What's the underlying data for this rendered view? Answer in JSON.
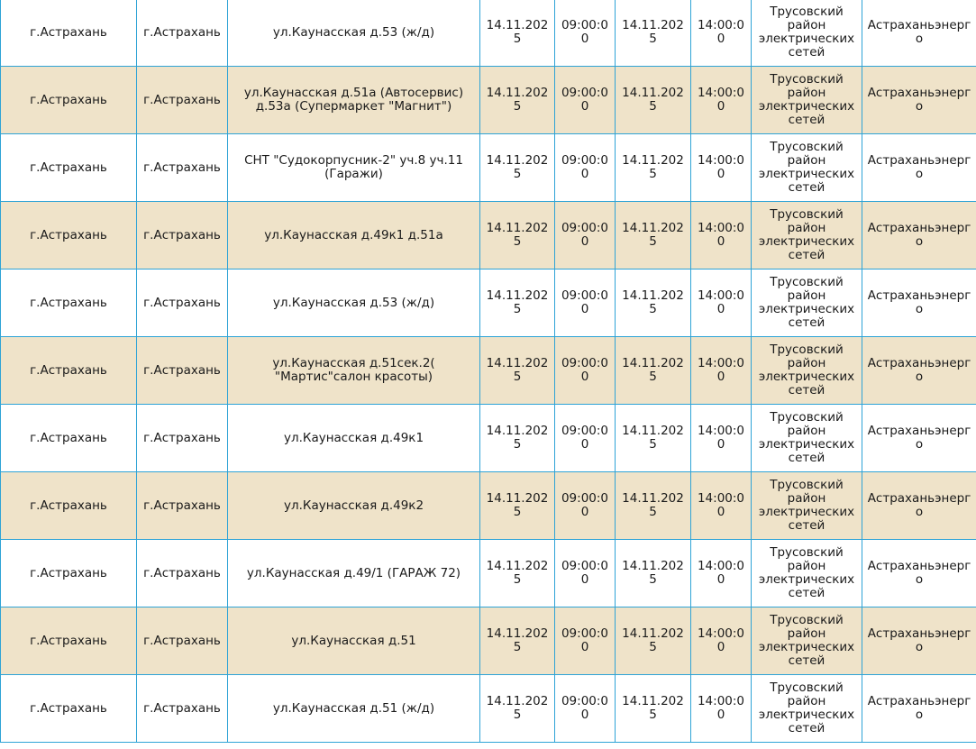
{
  "rows": [
    {
      "region": "г.Астрахань",
      "city": "г.Астрахань",
      "address": "ул.Каунасская д.53 (ж/д)",
      "start_date": "14.11.2025",
      "start_time": "09:00:00",
      "end_date": "14.11.2025",
      "end_time": "14:00:00",
      "district": "Трусовский район электрических сетей",
      "org": "Астраханьэнерго"
    },
    {
      "region": "г.Астрахань",
      "city": "г.Астрахань",
      "address": "ул.Каунасская д.51а (Автосервис) д.53а (Супермаркет \"Магнит\")",
      "start_date": "14.11.2025",
      "start_time": "09:00:00",
      "end_date": "14.11.2025",
      "end_time": "14:00:00",
      "district": "Трусовский район электрических сетей",
      "org": "Астраханьэнерго"
    },
    {
      "region": "г.Астрахань",
      "city": "г.Астрахань",
      "address": "СНТ \"Судокорпусник-2\" уч.8 уч.11 (Гаражи)",
      "start_date": "14.11.2025",
      "start_time": "09:00:00",
      "end_date": "14.11.2025",
      "end_time": "14:00:00",
      "district": "Трусовский район электрических сетей",
      "org": "Астраханьэнерго"
    },
    {
      "region": "г.Астрахань",
      "city": "г.Астрахань",
      "address": "ул.Каунасская д.49к1 д.51а",
      "start_date": "14.11.2025",
      "start_time": "09:00:00",
      "end_date": "14.11.2025",
      "end_time": "14:00:00",
      "district": "Трусовский район электрических сетей",
      "org": "Астраханьэнерго"
    },
    {
      "region": "г.Астрахань",
      "city": "г.Астрахань",
      "address": "ул.Каунасская д.53 (ж/д)",
      "start_date": "14.11.2025",
      "start_time": "09:00:00",
      "end_date": "14.11.2025",
      "end_time": "14:00:00",
      "district": "Трусовский район электрических сетей",
      "org": "Астраханьэнерго"
    },
    {
      "region": "г.Астрахань",
      "city": "г.Астрахань",
      "address": "ул.Каунасская д.51сек.2( \"Мартис\"салон красоты)",
      "start_date": "14.11.2025",
      "start_time": "09:00:00",
      "end_date": "14.11.2025",
      "end_time": "14:00:00",
      "district": "Трусовский район электрических сетей",
      "org": "Астраханьэнерго"
    },
    {
      "region": "г.Астрахань",
      "city": "г.Астрахань",
      "address": "ул.Каунасская д.49к1",
      "start_date": "14.11.2025",
      "start_time": "09:00:00",
      "end_date": "14.11.2025",
      "end_time": "14:00:00",
      "district": "Трусовский район электрических сетей",
      "org": "Астраханьэнерго"
    },
    {
      "region": "г.Астрахань",
      "city": "г.Астрахань",
      "address": "ул.Каунасская д.49к2",
      "start_date": "14.11.2025",
      "start_time": "09:00:00",
      "end_date": "14.11.2025",
      "end_time": "14:00:00",
      "district": "Трусовский район электрических сетей",
      "org": "Астраханьэнерго"
    },
    {
      "region": "г.Астрахань",
      "city": "г.Астрахань",
      "address": "ул.Каунасская д.49/1 (ГАРАЖ 72)",
      "start_date": "14.11.2025",
      "start_time": "09:00:00",
      "end_date": "14.11.2025",
      "end_time": "14:00:00",
      "district": "Трусовский район электрических сетей",
      "org": "Астраханьэнерго"
    },
    {
      "region": "г.Астрахань",
      "city": "г.Астрахань",
      "address": "ул.Каунасская д.51",
      "start_date": "14.11.2025",
      "start_time": "09:00:00",
      "end_date": "14.11.2025",
      "end_time": "14:00:00",
      "district": "Трусовский район электрических сетей",
      "org": "Астраханьэнерго"
    },
    {
      "region": "г.Астрахань",
      "city": "г.Астрахань",
      "address": "ул.Каунасская д.51 (ж/д)",
      "start_date": "14.11.2025",
      "start_time": "09:00:00",
      "end_date": "14.11.2025",
      "end_time": "14:00:00",
      "district": "Трусовский район электрических сетей",
      "org": "Астраханьэнерго"
    }
  ]
}
